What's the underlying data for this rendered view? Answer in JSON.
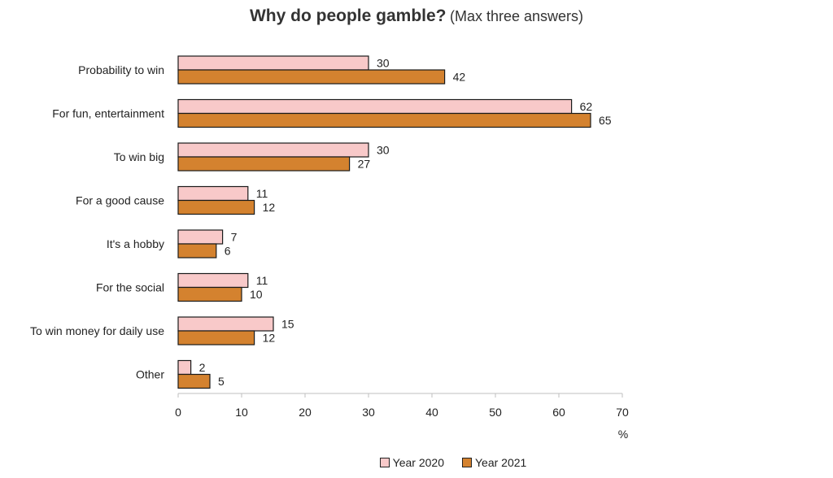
{
  "chart_data": {
    "type": "bar",
    "orientation": "horizontal",
    "title": "Why do people gamble?",
    "subtitle": "(Max three answers)",
    "categories": [
      "Probability to win",
      "For fun, entertainment",
      "To win big",
      "For a good cause",
      "It's a hobby",
      "For the social",
      "To win money for daily use",
      "Other"
    ],
    "series": [
      {
        "name": "Year 2020",
        "values": [
          30,
          62,
          30,
          11,
          7,
          11,
          15,
          2
        ],
        "color": "#f8c9c9"
      },
      {
        "name": "Year 2021",
        "values": [
          42,
          65,
          27,
          12,
          6,
          10,
          12,
          5
        ],
        "color": "#d4822f"
      }
    ],
    "xlim": [
      0,
      70
    ],
    "xticks": [
      "0",
      "10",
      "20",
      "30",
      "40",
      "50",
      "60",
      "70"
    ],
    "xlabel": "%",
    "grid": false,
    "legend_position": "bottom"
  }
}
